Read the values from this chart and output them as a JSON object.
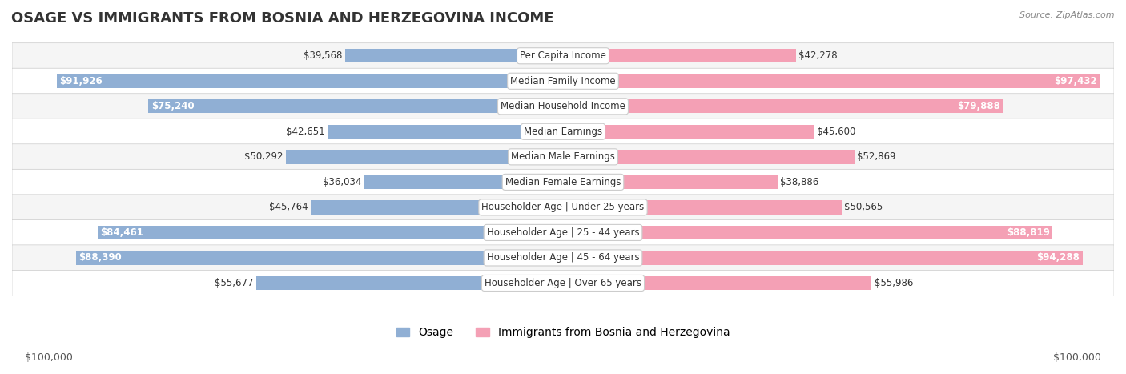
{
  "title": "OSAGE VS IMMIGRANTS FROM BOSNIA AND HERZEGOVINA INCOME",
  "source": "Source: ZipAtlas.com",
  "categories": [
    "Per Capita Income",
    "Median Family Income",
    "Median Household Income",
    "Median Earnings",
    "Median Male Earnings",
    "Median Female Earnings",
    "Householder Age | Under 25 years",
    "Householder Age | 25 - 44 years",
    "Householder Age | 45 - 64 years",
    "Householder Age | Over 65 years"
  ],
  "osage_values": [
    39568,
    91926,
    75240,
    42651,
    50292,
    36034,
    45764,
    84461,
    88390,
    55677
  ],
  "bosnia_values": [
    42278,
    97432,
    79888,
    45600,
    52869,
    38886,
    50565,
    88819,
    94288,
    55986
  ],
  "osage_labels": [
    "$39,568",
    "$91,926",
    "$75,240",
    "$42,651",
    "$50,292",
    "$36,034",
    "$45,764",
    "$84,461",
    "$88,390",
    "$55,677"
  ],
  "bosnia_labels": [
    "$42,278",
    "$97,432",
    "$79,888",
    "$45,600",
    "$52,869",
    "$38,886",
    "$50,565",
    "$88,819",
    "$94,288",
    "$55,986"
  ],
  "osage_color": "#90afd4",
  "bosnia_color": "#f4a0b5",
  "osage_color_dark": "#6b8fbf",
  "bosnia_color_dark": "#f07090",
  "max_value": 100000,
  "bar_height": 0.55,
  "row_bg_light": "#f5f5f5",
  "row_bg_white": "#ffffff",
  "label_inside_threshold": 70000,
  "title_fontsize": 13,
  "legend_fontsize": 10,
  "tick_fontsize": 9,
  "bar_label_fontsize": 8.5,
  "category_fontsize": 8.5
}
